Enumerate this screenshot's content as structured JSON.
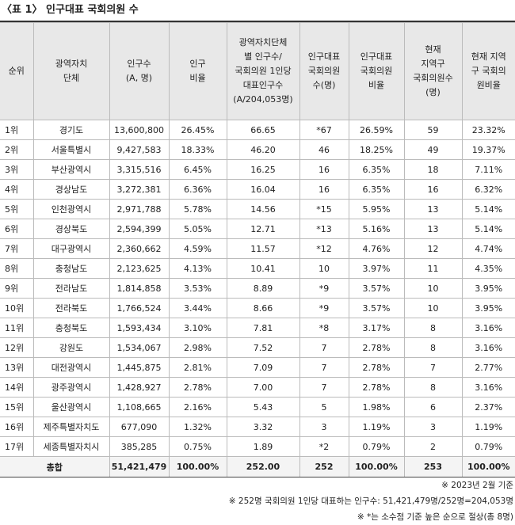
{
  "title": "〈표 1〉 인구대표 국회의원 수",
  "table": {
    "header": [
      [
        "순위"
      ],
      [
        "광역자치",
        "단체"
      ],
      [
        "인구수",
        "(A, 명)"
      ],
      [
        "인구",
        "비율"
      ],
      [
        "광역자치단체",
        "별 인구수/",
        "국회의원 1인당",
        "대표인구수",
        "(A/204,053명)"
      ],
      [
        "인구대표",
        "국회의원",
        "수(명)"
      ],
      [
        "인구대표",
        "국회의원",
        "비율"
      ],
      [
        "현재",
        "지역구",
        "국회의원수",
        "(명)"
      ],
      [
        "현재 지역",
        "구 국회의",
        "원비율"
      ]
    ],
    "rows": [
      [
        "1위",
        "경기도",
        "13,600,800",
        "26.45%",
        "66.65",
        "*67",
        "26.59%",
        "59",
        "23.32%"
      ],
      [
        "2위",
        "서울특별시",
        "9,427,583",
        "18.33%",
        "46.20",
        "46",
        "18.25%",
        "49",
        "19.37%"
      ],
      [
        "3위",
        "부산광역시",
        "3,315,516",
        "6.45%",
        "16.25",
        "16",
        "6.35%",
        "18",
        "7.11%"
      ],
      [
        "4위",
        "경상남도",
        "3,272,381",
        "6.36%",
        "16.04",
        "16",
        "6.35%",
        "16",
        "6.32%"
      ],
      [
        "5위",
        "인천광역시",
        "2,971,788",
        "5.78%",
        "14.56",
        "*15",
        "5.95%",
        "13",
        "5.14%"
      ],
      [
        "6위",
        "경상북도",
        "2,594,399",
        "5.05%",
        "12.71",
        "*13",
        "5.16%",
        "13",
        "5.14%"
      ],
      [
        "7위",
        "대구광역시",
        "2,360,662",
        "4.59%",
        "11.57",
        "*12",
        "4.76%",
        "12",
        "4.74%"
      ],
      [
        "8위",
        "충청남도",
        "2,123,625",
        "4.13%",
        "10.41",
        "10",
        "3.97%",
        "11",
        "4.35%"
      ],
      [
        "9위",
        "전라남도",
        "1,814,858",
        "3.53%",
        "8.89",
        "*9",
        "3.57%",
        "10",
        "3.95%"
      ],
      [
        "10위",
        "전라북도",
        "1,766,524",
        "3.44%",
        "8.66",
        "*9",
        "3.57%",
        "10",
        "3.95%"
      ],
      [
        "11위",
        "충청북도",
        "1,593,434",
        "3.10%",
        "7.81",
        "*8",
        "3.17%",
        "8",
        "3.16%"
      ],
      [
        "12위",
        "강원도",
        "1,534,067",
        "2.98%",
        "7.52",
        "7",
        "2.78%",
        "8",
        "3.16%"
      ],
      [
        "13위",
        "대전광역시",
        "1,445,875",
        "2.81%",
        "7.09",
        "7",
        "2.78%",
        "7",
        "2.77%"
      ],
      [
        "14위",
        "광주광역시",
        "1,428,927",
        "2.78%",
        "7.00",
        "7",
        "2.78%",
        "8",
        "3.16%"
      ],
      [
        "15위",
        "울산광역시",
        "1,108,665",
        "2.16%",
        "5.43",
        "5",
        "1.98%",
        "6",
        "2.37%"
      ],
      [
        "16위",
        "제주특별자치도",
        "677,090",
        "1.32%",
        "3.32",
        "3",
        "1.19%",
        "3",
        "1.19%"
      ],
      [
        "17위",
        "세종특별자치시",
        "385,285",
        "0.75%",
        "1.89",
        "*2",
        "0.79%",
        "2",
        "0.79%"
      ]
    ],
    "total": [
      "총합",
      "51,421,479",
      "100.00%",
      "252.00",
      "252",
      "100.00%",
      "253",
      "100.00%"
    ]
  },
  "notes": [
    "※ 2023년 2월 기준",
    "※ 252명 국회의원 1인당 대표하는 인구수: 51,421,479명/252명=204,053명",
    "※ *는 소수점 기준 높은 순으로 절상(총 8명)"
  ]
}
